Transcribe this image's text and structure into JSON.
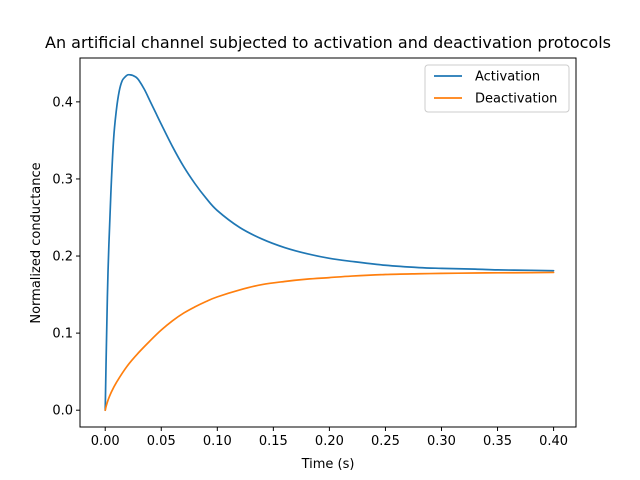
{
  "chart_data": {
    "type": "line",
    "title": "An artificial channel subjected to activation and deactivation protocols",
    "xlabel": "Time (s)",
    "ylabel": "Normalized conductance",
    "xlim": [
      -0.0225,
      0.42
    ],
    "ylim": [
      -0.0218,
      0.4569
    ],
    "xticks": [
      0.0,
      0.05,
      0.1,
      0.15,
      0.2,
      0.25,
      0.3,
      0.35,
      0.4
    ],
    "xtick_labels": [
      "0.00",
      "0.05",
      "0.10",
      "0.15",
      "0.20",
      "0.25",
      "0.30",
      "0.35",
      "0.40"
    ],
    "yticks": [
      0.0,
      0.1,
      0.2,
      0.3,
      0.4
    ],
    "ytick_labels": [
      "0.0",
      "0.1",
      "0.2",
      "0.3",
      "0.4"
    ],
    "grid": false,
    "legend_position": "upper-right",
    "series": [
      {
        "name": "Activation",
        "color": "#1f77b4",
        "x": [
          0.0,
          0.001,
          0.0025,
          0.005,
          0.0075,
          0.01,
          0.0125,
          0.015,
          0.0175,
          0.02,
          0.0225,
          0.025,
          0.0275,
          0.03,
          0.035,
          0.04,
          0.045,
          0.05,
          0.06,
          0.07,
          0.08,
          0.09,
          0.1,
          0.12,
          0.14,
          0.16,
          0.18,
          0.2,
          0.22,
          0.25,
          0.28,
          0.3,
          0.33,
          0.35,
          0.38,
          0.4
        ],
        "y": [
          0.0,
          0.08,
          0.18,
          0.28,
          0.352,
          0.39,
          0.414,
          0.427,
          0.432,
          0.435,
          0.435,
          0.434,
          0.432,
          0.428,
          0.416,
          0.401,
          0.386,
          0.371,
          0.342,
          0.316,
          0.294,
          0.275,
          0.259,
          0.237,
          0.222,
          0.211,
          0.203,
          0.197,
          0.193,
          0.188,
          0.185,
          0.184,
          0.183,
          0.182,
          0.1815,
          0.181
        ]
      },
      {
        "name": "Deactivation",
        "color": "#ff7f0e",
        "x": [
          0.0,
          0.001,
          0.0025,
          0.005,
          0.01,
          0.02,
          0.03,
          0.04,
          0.05,
          0.06,
          0.07,
          0.08,
          0.09,
          0.1,
          0.12,
          0.14,
          0.16,
          0.18,
          0.2,
          0.22,
          0.25,
          0.28,
          0.3,
          0.33,
          0.35,
          0.38,
          0.4
        ],
        "y": [
          0.0,
          0.006,
          0.013,
          0.022,
          0.036,
          0.058,
          0.075,
          0.09,
          0.104,
          0.116,
          0.126,
          0.134,
          0.141,
          0.147,
          0.156,
          0.163,
          0.167,
          0.17,
          0.172,
          0.174,
          0.176,
          0.177,
          0.1775,
          0.178,
          0.1782,
          0.1785,
          0.1787
        ]
      }
    ]
  }
}
